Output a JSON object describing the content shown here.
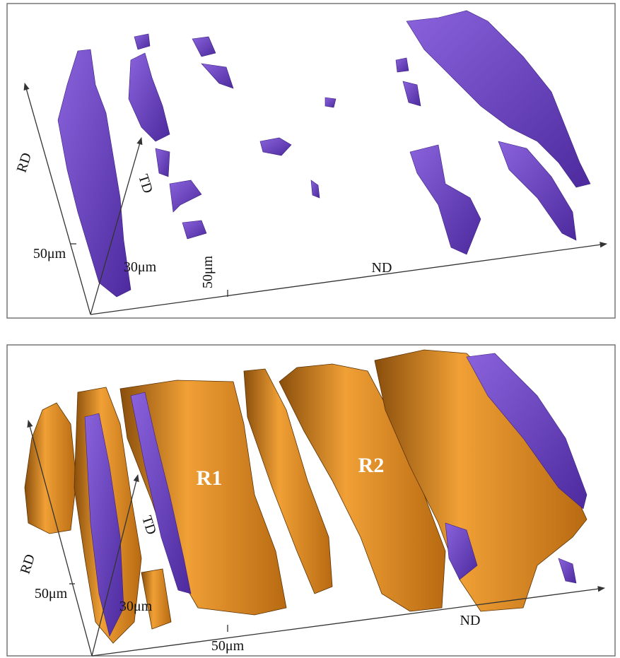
{
  "panels": [
    {
      "axes": {
        "rd": "RD",
        "td": "TD",
        "nd": "ND"
      },
      "scale_labels": [
        "50μm",
        "30μm",
        "50μm"
      ]
    },
    {
      "axes": {
        "rd": "RD",
        "td": "TD",
        "nd": "ND"
      },
      "scale_labels": [
        "50μm",
        "30μm",
        "50μm"
      ],
      "region_labels": [
        "R1",
        "R2"
      ]
    }
  ]
}
